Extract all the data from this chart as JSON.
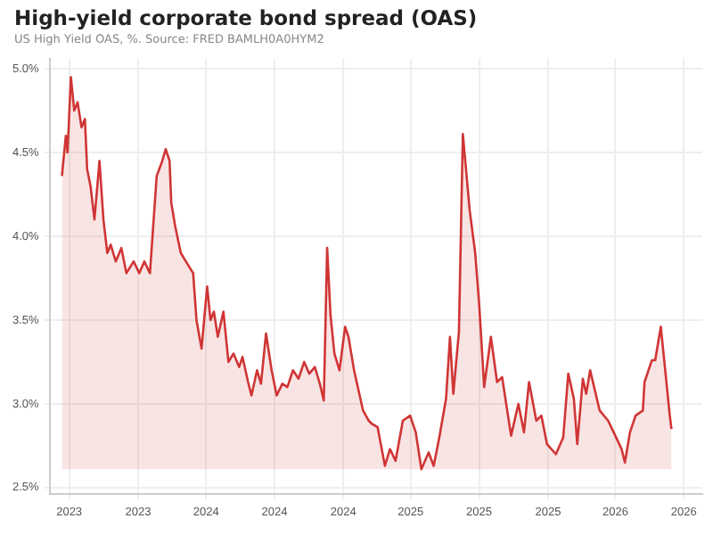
{
  "chart_data": {
    "type": "area",
    "title": "High-yield corporate bond spread (OAS)",
    "subtitle": "US High Yield OAS, %. Source: FRED BAMLH0A0HYM2",
    "x": [
      "2023-06-18",
      "2023-06-25",
      "2023-06-28",
      "2023-07-04",
      "2023-07-10",
      "2023-07-16",
      "2023-07-23",
      "2023-07-29",
      "2023-08-02",
      "2023-08-08",
      "2023-08-15",
      "2023-08-24",
      "2023-08-31",
      "2023-09-07",
      "2023-09-13",
      "2023-09-22",
      "2023-10-02",
      "2023-10-11",
      "2023-10-24",
      "2023-11-03",
      "2023-11-12",
      "2023-11-22",
      "2023-12-04",
      "2023-12-14",
      "2023-12-20",
      "2023-12-27",
      "2023-12-30",
      "2024-01-06",
      "2024-01-16",
      "2024-01-25",
      "2024-02-07",
      "2024-02-13",
      "2024-02-22",
      "2024-03-03",
      "2024-03-09",
      "2024-03-15",
      "2024-03-22",
      "2024-04-01",
      "2024-04-10",
      "2024-04-19",
      "2024-04-29",
      "2024-05-05",
      "2024-05-15",
      "2024-05-21",
      "2024-05-31",
      "2024-06-07",
      "2024-06-16",
      "2024-06-26",
      "2024-07-05",
      "2024-07-15",
      "2024-07-24",
      "2024-08-03",
      "2024-08-13",
      "2024-08-23",
      "2024-09-01",
      "2024-09-11",
      "2024-09-20",
      "2024-09-27",
      "2024-10-03",
      "2024-10-09",
      "2024-10-16",
      "2024-10-25",
      "2024-11-04",
      "2024-11-10",
      "2024-11-20",
      "2024-11-30",
      "2024-12-06",
      "2024-12-16",
      "2024-12-22",
      "2025-01-01",
      "2025-01-14",
      "2025-01-23",
      "2025-02-02",
      "2025-02-15",
      "2025-02-28",
      "2025-03-10",
      "2025-03-20",
      "2025-04-02",
      "2025-04-11",
      "2025-04-21",
      "2025-05-03",
      "2025-05-10",
      "2025-05-16",
      "2025-05-26",
      "2025-06-02",
      "2025-06-14",
      "2025-06-24",
      "2025-07-01",
      "2025-07-10",
      "2025-07-22",
      "2025-08-02",
      "2025-08-11",
      "2025-08-27",
      "2025-09-09",
      "2025-09-19",
      "2025-09-28",
      "2025-10-11",
      "2025-10-20",
      "2025-10-30",
      "2025-11-15",
      "2025-11-28",
      "2025-12-07",
      "2025-12-17",
      "2025-12-23",
      "2026-01-02",
      "2026-01-08",
      "2026-01-15",
      "2026-02-01",
      "2026-02-16",
      "2026-02-26",
      "2026-03-12",
      "2026-03-18",
      "2026-03-27",
      "2026-04-06",
      "2026-04-19",
      "2026-04-22",
      "2026-05-05",
      "2026-05-11",
      "2026-05-21",
      "2026-05-31",
      "2026-06-06",
      "2026-06-09"
    ],
    "series": [
      {
        "color": "#d03535",
        "values": [
          4.36,
          4.6,
          4.5,
          4.95,
          4.75,
          4.8,
          4.65,
          4.7,
          4.4,
          4.3,
          4.1,
          4.45,
          4.1,
          3.9,
          3.95,
          3.85,
          3.93,
          3.78,
          3.85,
          3.78,
          3.85,
          3.78,
          4.36,
          4.45,
          4.52,
          4.45,
          4.2,
          4.06,
          3.9,
          3.85,
          3.78,
          3.5,
          3.33,
          3.7,
          3.5,
          3.55,
          3.4,
          3.55,
          3.25,
          3.3,
          3.22,
          3.28,
          3.13,
          3.05,
          3.2,
          3.12,
          3.42,
          3.2,
          3.05,
          3.12,
          3.1,
          3.2,
          3.15,
          3.25,
          3.18,
          3.22,
          3.12,
          3.02,
          3.93,
          3.53,
          3.3,
          3.2,
          3.46,
          3.4,
          3.2,
          3.05,
          2.96,
          2.9,
          2.88,
          2.86,
          2.63,
          2.73,
          2.66,
          2.9,
          2.93,
          2.83,
          2.61,
          2.71,
          2.63,
          2.8,
          3.03,
          3.4,
          3.06,
          3.43,
          4.61,
          4.16,
          3.9,
          3.6,
          3.1,
          3.4,
          3.13,
          3.16,
          2.81,
          3.0,
          2.83,
          3.13,
          2.9,
          2.93,
          2.76,
          2.7,
          2.8,
          3.18,
          3.03,
          2.76,
          3.15,
          3.06,
          3.2,
          2.96,
          2.9,
          2.83,
          2.73,
          2.65,
          2.83,
          2.93,
          2.96,
          3.13,
          3.26,
          3.26,
          3.46,
          3.13,
          2.93,
          2.85
        ]
      }
    ],
    "xlim": [
      "2023-05-27",
      "2026-08-03"
    ],
    "xticks": [
      {
        "value": "2023-07-01",
        "label": "2023"
      },
      {
        "value": "2023-11-01",
        "label": "2023"
      },
      {
        "value": "2024-03-01",
        "label": "2024"
      },
      {
        "value": "2024-07-01",
        "label": "2024"
      },
      {
        "value": "2024-11-01",
        "label": "2024"
      },
      {
        "value": "2025-03-01",
        "label": "2025"
      },
      {
        "value": "2025-07-01",
        "label": "2025"
      },
      {
        "value": "2025-11-01",
        "label": "2025"
      },
      {
        "value": "2026-03-01",
        "label": "2026"
      },
      {
        "value": "2026-07-01",
        "label": "2026"
      }
    ],
    "ylim": [
      2.46,
      5.06
    ],
    "yticks": [
      {
        "value": 2.5,
        "label": "2.5%"
      },
      {
        "value": 3,
        "label": "3.0%"
      },
      {
        "value": 3.5,
        "label": "3.5%"
      },
      {
        "value": 4,
        "label": "4.0%"
      },
      {
        "value": 4.5,
        "label": "4.5%"
      },
      {
        "value": 5,
        "label": "5.0%"
      }
    ],
    "grid": true,
    "legend": false
  }
}
